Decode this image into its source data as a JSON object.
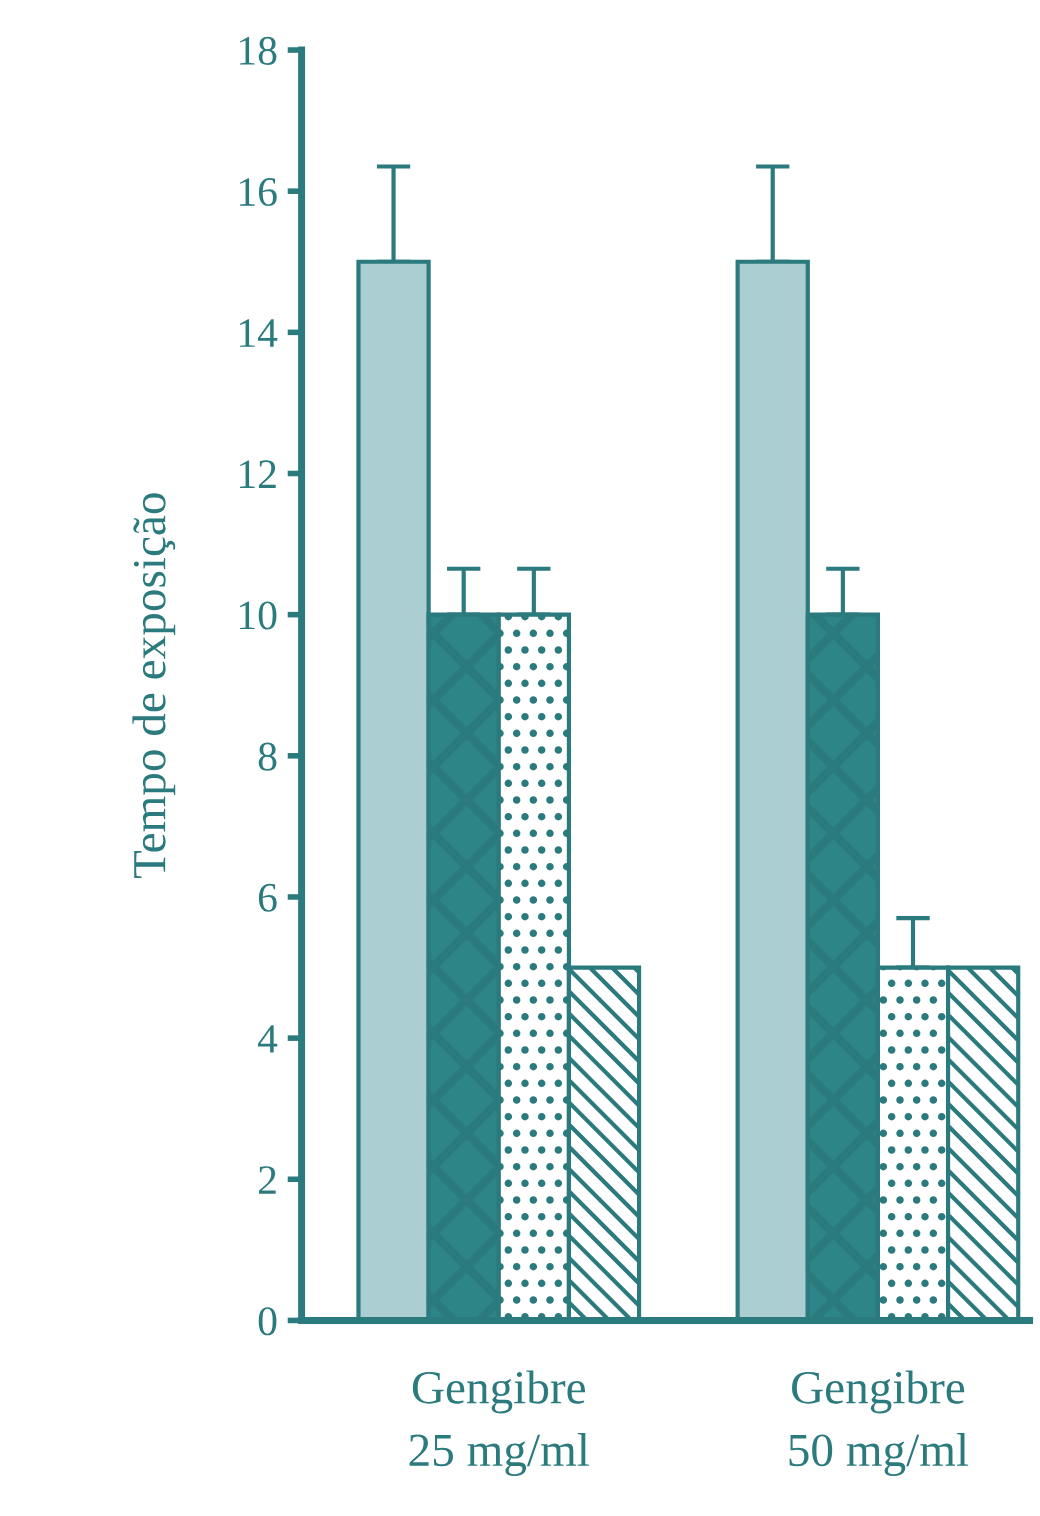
{
  "chart_data": {
    "type": "bar",
    "ylabel": "Tempo de exposição",
    "categories": [
      "Gengibre\n25 mg/ml",
      "Gengibre\n50 mg/ml"
    ],
    "series": [
      {
        "color": "#a9cdd0",
        "values": [
          15,
          15
        ],
        "errors": [
          [
            15,
            16.35
          ],
          [
            15,
            16.35
          ]
        ]
      },
      {
        "color": "#2e8588",
        "values": [
          10,
          10
        ],
        "errors": [
          [
            10,
            10.65
          ],
          [
            10,
            10.65
          ]
        ]
      },
      {
        "color": "#2a7a7e",
        "values": [
          10,
          5
        ],
        "errors": [
          [
            10,
            10.65
          ],
          [
            5,
            5.7
          ]
        ]
      },
      {
        "color": "#2a7a7e",
        "values": [
          5,
          5
        ]
      }
    ],
    "ylim": [
      0,
      18
    ],
    "yticks": [
      0,
      2,
      4,
      6,
      8,
      10,
      12,
      14,
      16,
      18
    ],
    "grid": false,
    "legend": false
  }
}
